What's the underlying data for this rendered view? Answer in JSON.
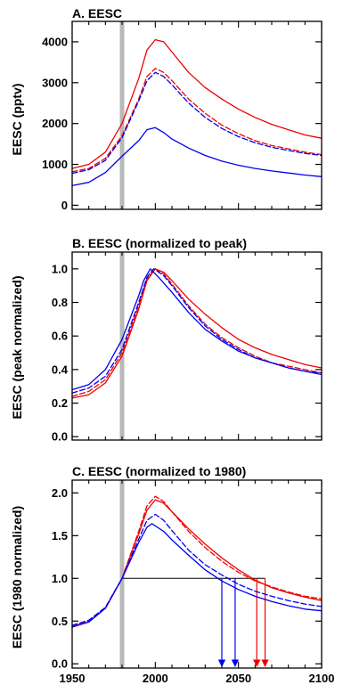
{
  "chart_data": [
    {
      "type": "line",
      "title": "A. EESC",
      "ylabel": "EESC (pptv)",
      "xlim": [
        1950,
        2100
      ],
      "ylim": [
        -100,
        4500
      ],
      "yticks": [
        0,
        1000,
        2000,
        3000,
        4000
      ],
      "xticks": [
        1950,
        2000,
        2050,
        2100
      ],
      "show_xtick_labels": false,
      "highlight_year": 1980,
      "series": [
        {
          "color": "#ee0000",
          "dash": false,
          "x": [
            1950,
            1960,
            1970,
            1980,
            1990,
            1995,
            2000,
            2005,
            2010,
            2020,
            2030,
            2040,
            2050,
            2060,
            2070,
            2080,
            2090,
            2100
          ],
          "y": [
            900,
            1000,
            1300,
            2000,
            3100,
            3800,
            4050,
            4000,
            3750,
            3250,
            2880,
            2600,
            2350,
            2150,
            1980,
            1850,
            1720,
            1640
          ]
        },
        {
          "color": "#ee0000",
          "dash": true,
          "x": [
            1950,
            1960,
            1970,
            1980,
            1990,
            1995,
            2000,
            2005,
            2010,
            2020,
            2030,
            2040,
            2050,
            2060,
            2070,
            2080,
            2090,
            2100
          ],
          "y": [
            820,
            900,
            1150,
            1700,
            2600,
            3150,
            3350,
            3250,
            3050,
            2600,
            2250,
            1960,
            1750,
            1580,
            1460,
            1380,
            1300,
            1240
          ]
        },
        {
          "color": "#0000ee",
          "dash": true,
          "x": [
            1950,
            1960,
            1970,
            1980,
            1990,
            1995,
            2000,
            2005,
            2010,
            2020,
            2030,
            2040,
            2050,
            2060,
            2070,
            2080,
            2090,
            2100
          ],
          "y": [
            780,
            870,
            1100,
            1650,
            2550,
            3050,
            3250,
            3150,
            2950,
            2500,
            2150,
            1880,
            1680,
            1530,
            1420,
            1340,
            1270,
            1220
          ]
        },
        {
          "color": "#0000ee",
          "dash": false,
          "x": [
            1950,
            1960,
            1970,
            1980,
            1990,
            1995,
            2000,
            2005,
            2010,
            2020,
            2030,
            2040,
            2050,
            2060,
            2070,
            2080,
            2090,
            2100
          ],
          "y": [
            480,
            560,
            800,
            1200,
            1580,
            1850,
            1900,
            1780,
            1620,
            1400,
            1220,
            1080,
            980,
            900,
            840,
            790,
            740,
            700
          ]
        }
      ]
    },
    {
      "type": "line",
      "title": "B. EESC (normalized to peak)",
      "ylabel": "EESC (peak normalized)",
      "xlim": [
        1950,
        2100
      ],
      "ylim": [
        -0.02,
        1.1
      ],
      "yticks": [
        0.0,
        0.2,
        0.4,
        0.6,
        0.8,
        1.0
      ],
      "ytick_labels": [
        "0.0",
        "0.2",
        "0.4",
        "0.6",
        "0.8",
        "1.0"
      ],
      "xticks": [
        1950,
        2000,
        2050,
        2100
      ],
      "show_xtick_labels": false,
      "highlight_year": 1980,
      "series": [
        {
          "color": "#ee0000",
          "dash": false,
          "x": [
            1950,
            1960,
            1970,
            1980,
            1990,
            1995,
            2000,
            2005,
            2010,
            2020,
            2030,
            2040,
            2050,
            2060,
            2070,
            2080,
            2090,
            2100
          ],
          "y": [
            0.23,
            0.25,
            0.32,
            0.48,
            0.76,
            0.93,
            1.0,
            0.98,
            0.93,
            0.82,
            0.73,
            0.65,
            0.58,
            0.53,
            0.49,
            0.46,
            0.43,
            0.41
          ]
        },
        {
          "color": "#ee0000",
          "dash": true,
          "x": [
            1950,
            1960,
            1970,
            1980,
            1990,
            1995,
            2000,
            2005,
            2010,
            2020,
            2030,
            2040,
            2050,
            2060,
            2070,
            2080,
            2090,
            2100
          ],
          "y": [
            0.24,
            0.27,
            0.34,
            0.5,
            0.78,
            0.94,
            1.0,
            0.97,
            0.91,
            0.78,
            0.67,
            0.59,
            0.53,
            0.48,
            0.44,
            0.42,
            0.4,
            0.38
          ]
        },
        {
          "color": "#0000ee",
          "dash": true,
          "x": [
            1950,
            1960,
            1970,
            1980,
            1990,
            1995,
            1999,
            2005,
            2010,
            2020,
            2030,
            2040,
            2050,
            2060,
            2070,
            2080,
            2090,
            2100
          ],
          "y": [
            0.26,
            0.29,
            0.36,
            0.52,
            0.8,
            0.95,
            1.0,
            0.96,
            0.9,
            0.77,
            0.66,
            0.58,
            0.52,
            0.47,
            0.44,
            0.41,
            0.39,
            0.38
          ]
        },
        {
          "color": "#0000ee",
          "dash": false,
          "x": [
            1950,
            1960,
            1970,
            1980,
            1990,
            1993,
            1997,
            2002,
            2010,
            2020,
            2030,
            2040,
            2050,
            2060,
            2070,
            2080,
            2090,
            2100
          ],
          "y": [
            0.28,
            0.31,
            0.4,
            0.58,
            0.84,
            0.93,
            1.0,
            0.95,
            0.86,
            0.74,
            0.64,
            0.57,
            0.51,
            0.47,
            0.44,
            0.41,
            0.39,
            0.37
          ]
        }
      ]
    },
    {
      "type": "line",
      "title": "C. EESC (normalized to 1980)",
      "ylabel": "EESC (1980 normalized)",
      "xlim": [
        1950,
        2100
      ],
      "ylim": [
        -0.05,
        2.15
      ],
      "yticks": [
        0.0,
        0.5,
        1.0,
        1.5,
        2.0
      ],
      "ytick_labels": [
        "0.0",
        "0.5",
        "1.0",
        "1.5",
        "2.0"
      ],
      "xticks": [
        1950,
        2000,
        2050,
        2100
      ],
      "xtick_labels": [
        "1950",
        "2000",
        "2050",
        "2100"
      ],
      "show_xtick_labels": true,
      "highlight_year": 1980,
      "reference_line": {
        "y": 1.0,
        "x_start": 1980,
        "x_end": 2066
      },
      "return_arrows": [
        {
          "x": 2040,
          "color": "#0000ee"
        },
        {
          "x": 2048,
          "color": "#0000ee"
        },
        {
          "x": 2061,
          "color": "#ee0000"
        },
        {
          "x": 2066,
          "color": "#ee0000"
        }
      ],
      "series": [
        {
          "color": "#ee0000",
          "dash": true,
          "x": [
            1950,
            1960,
            1970,
            1980,
            1990,
            1995,
            2000,
            2005,
            2010,
            2020,
            2030,
            2040,
            2050,
            2060,
            2070,
            2080,
            2090,
            2100
          ],
          "y": [
            0.44,
            0.5,
            0.66,
            1.0,
            1.55,
            1.85,
            1.96,
            1.9,
            1.78,
            1.55,
            1.36,
            1.2,
            1.07,
            0.97,
            0.9,
            0.84,
            0.79,
            0.76
          ]
        },
        {
          "color": "#ee0000",
          "dash": false,
          "x": [
            1950,
            1960,
            1970,
            1980,
            1990,
            1995,
            2000,
            2005,
            2010,
            2020,
            2030,
            2040,
            2050,
            2060,
            2070,
            2080,
            2090,
            2100
          ],
          "y": [
            0.44,
            0.49,
            0.65,
            1.0,
            1.52,
            1.8,
            1.92,
            1.88,
            1.78,
            1.58,
            1.4,
            1.24,
            1.1,
            0.98,
            0.89,
            0.83,
            0.78,
            0.74
          ]
        },
        {
          "color": "#0000ee",
          "dash": true,
          "x": [
            1950,
            1960,
            1970,
            1980,
            1990,
            1995,
            2000,
            2005,
            2010,
            2020,
            2030,
            2040,
            2050,
            2060,
            2070,
            2080,
            2090,
            2100
          ],
          "y": [
            0.45,
            0.51,
            0.66,
            1.0,
            1.46,
            1.68,
            1.75,
            1.68,
            1.56,
            1.33,
            1.16,
            1.04,
            0.93,
            0.85,
            0.79,
            0.74,
            0.7,
            0.67
          ]
        },
        {
          "color": "#0000ee",
          "dash": false,
          "x": [
            1950,
            1960,
            1970,
            1980,
            1990,
            1995,
            1998,
            2005,
            2010,
            2020,
            2030,
            2040,
            2050,
            2060,
            2070,
            2080,
            2090,
            2100
          ],
          "y": [
            0.43,
            0.49,
            0.65,
            1.0,
            1.42,
            1.6,
            1.64,
            1.55,
            1.45,
            1.27,
            1.1,
            0.97,
            0.87,
            0.79,
            0.73,
            0.68,
            0.64,
            0.62
          ]
        }
      ]
    }
  ]
}
